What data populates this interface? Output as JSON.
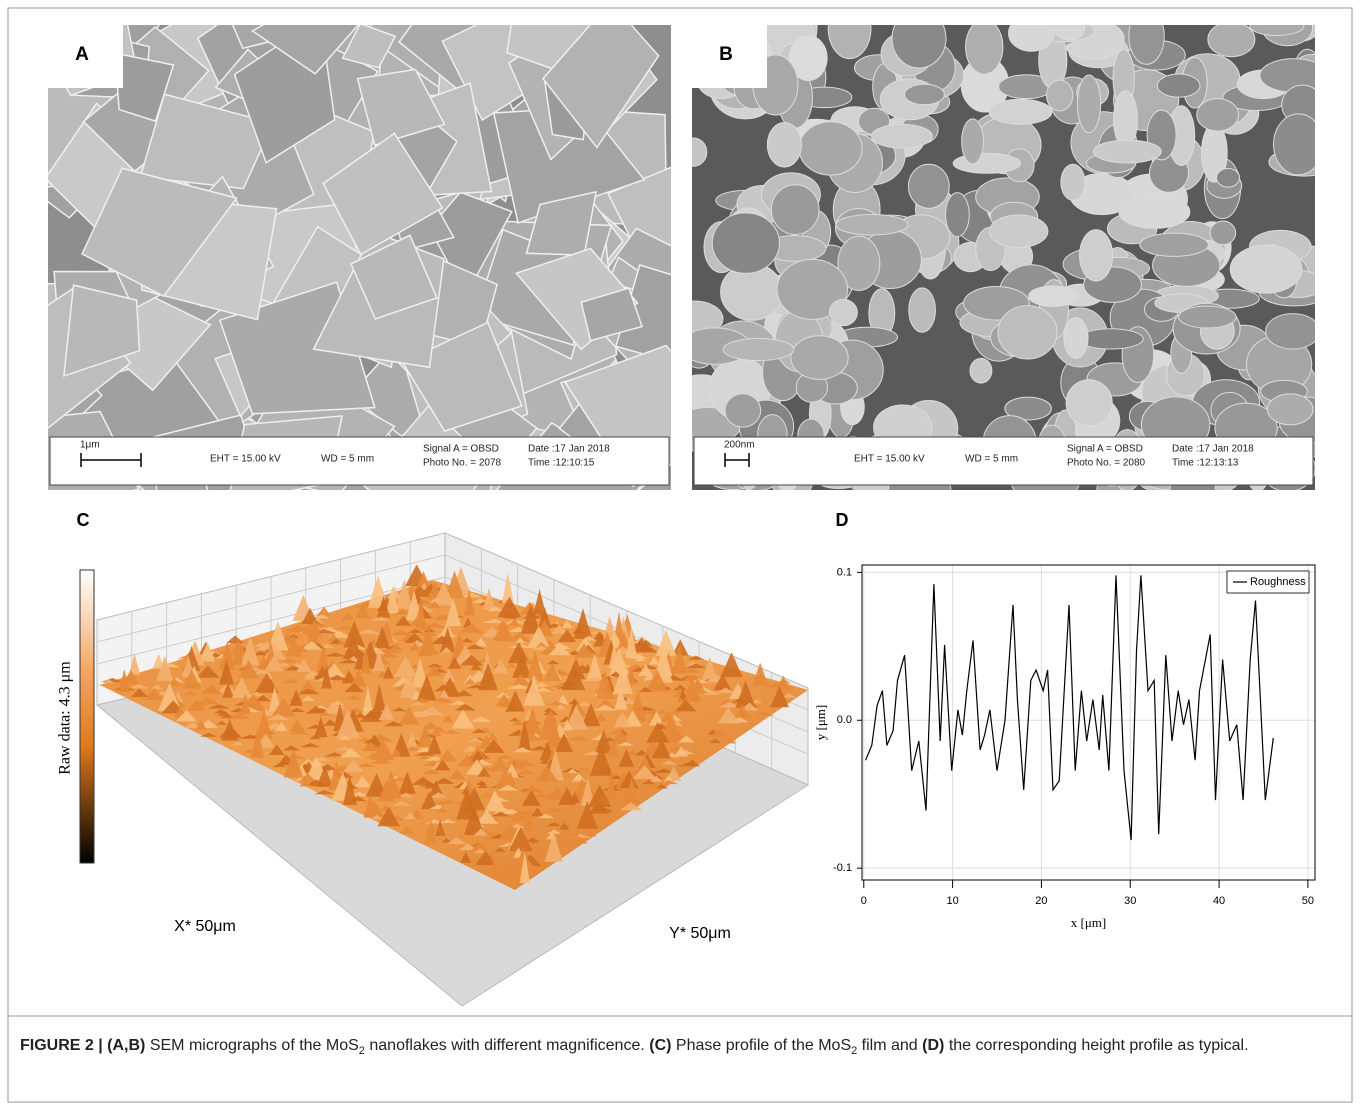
{
  "sem": [
    {
      "label": "A",
      "scale": "1μm",
      "eht": "EHT = 15.00 kV",
      "wd": "WD =  5 mm",
      "signal": "Signal A = OBSD",
      "photo": "Photo No. = 2078",
      "date": "Date :17 Jan 2018",
      "time": "Time :12:10:15"
    },
    {
      "label": "B",
      "scale": "200nm",
      "eht": "EHT = 15.00 kV",
      "wd": "WD =  5 mm",
      "signal": "Signal A = OBSD",
      "photo": "Photo No. = 2080",
      "date": "Date :17 Jan 2018",
      "time": "Time :12:13:13"
    }
  ],
  "surface": {
    "label": "C",
    "colorbar_label": "Raw data: 4.3 μm",
    "x_label": "X* 50μm",
    "y_label": "Y* 50μm"
  },
  "chart_data": {
    "type": "line",
    "panel_label": "D",
    "xlabel": "x [μm]",
    "ylabel": "y [μm]",
    "xlim": [
      -0.2,
      50.8
    ],
    "ylim": [
      -0.108,
      0.105
    ],
    "xticks": [
      0,
      10,
      20,
      30,
      40,
      50
    ],
    "yticks": [
      -0.1,
      {
        "value": 0,
        "label": "0.0"
      },
      0.1
    ],
    "grid": true,
    "legend": "upper right",
    "x": [
      0.2,
      0.9,
      1.5,
      2.1,
      2.6,
      3.3,
      3.8,
      4.6,
      5.4,
      6.2,
      7.0,
      7.9,
      8.6,
      9.1,
      9.9,
      10.6,
      11.1,
      11.6,
      12.3,
      13.1,
      13.6,
      14.2,
      15.0,
      15.9,
      16.8,
      17.3,
      18.0,
      18.8,
      19.4,
      20.2,
      20.7,
      21.3,
      22.0,
      23.1,
      23.8,
      24.5,
      25.1,
      25.8,
      26.5,
      26.9,
      27.6,
      28.4,
      29.3,
      30.1,
      30.7,
      31.2,
      32.0,
      32.7,
      33.2,
      34.0,
      34.7,
      35.4,
      36.0,
      36.6,
      37.3,
      37.8,
      39.0,
      39.6,
      40.4,
      41.2,
      42.0,
      42.7,
      43.5,
      44.1,
      45.2,
      46.1
    ],
    "series": [
      {
        "name": "Roughness",
        "color": "#000000",
        "values": [
          -0.027,
          -0.017,
          0.01,
          0.02,
          -0.017,
          -0.007,
          0.027,
          0.044,
          -0.034,
          -0.014,
          -0.061,
          0.092,
          -0.014,
          0.051,
          -0.034,
          0.007,
          -0.01,
          0.02,
          0.054,
          -0.02,
          -0.01,
          0.007,
          -0.034,
          0.0,
          0.078,
          0.014,
          -0.047,
          0.027,
          0.034,
          0.02,
          0.034,
          -0.047,
          -0.041,
          0.078,
          -0.034,
          0.02,
          -0.014,
          0.014,
          -0.02,
          0.017,
          -0.034,
          0.098,
          -0.034,
          -0.081,
          0.047,
          0.098,
          0.02,
          0.027,
          -0.077,
          0.044,
          -0.014,
          0.02,
          -0.003,
          0.014,
          -0.027,
          0.02,
          0.058,
          -0.054,
          0.041,
          -0.014,
          -0.003,
          -0.054,
          0.041,
          0.081,
          -0.054,
          -0.012
        ]
      }
    ]
  },
  "caption": [
    {
      "text": "FIGURE 2 | ",
      "style": "bold"
    },
    {
      "text": "(A,B)",
      "style": "bold"
    },
    {
      "text": " SEM micrographs of the MoS",
      "style": "normal"
    },
    {
      "text": "2",
      "style": "sub"
    },
    {
      "text": " nanoflakes with different magnificence. ",
      "style": "normal"
    },
    {
      "text": "(C)",
      "style": "bold"
    },
    {
      "text": " Phase profile of the MoS",
      "style": "normal"
    },
    {
      "text": "2",
      "style": "sub"
    },
    {
      "text": " film and ",
      "style": "normal"
    },
    {
      "text": "(D)",
      "style": "bold"
    },
    {
      "text": " the corresponding height profile as typical.",
      "style": "normal"
    }
  ]
}
